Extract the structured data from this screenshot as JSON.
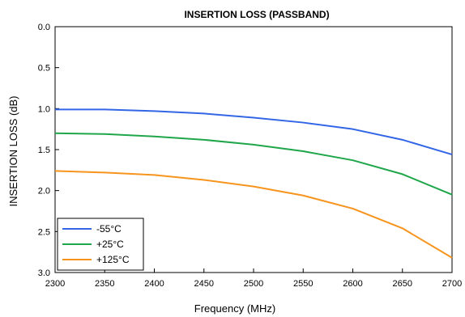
{
  "chart_data": {
    "type": "line",
    "title": "INSERTION LOSS (PASSBAND)",
    "xlabel": "Frequency (MHz)",
    "ylabel": "INSERTION LOSS (dB)",
    "xlim": [
      2300,
      2700
    ],
    "ylim": [
      0.0,
      3.0
    ],
    "y_inverted": true,
    "grid": false,
    "legend_position": "bottom-left",
    "x_ticks": [
      "2300",
      "2350",
      "2400",
      "2450",
      "2500",
      "2550",
      "2600",
      "2650",
      "2700"
    ],
    "y_ticks": [
      "0.0",
      "0.5",
      "1.0",
      "1.5",
      "2.0",
      "2.5",
      "3.0"
    ],
    "x": [
      2300,
      2350,
      2400,
      2450,
      2500,
      2550,
      2600,
      2650,
      2700
    ],
    "series": [
      {
        "name": "-55°C",
        "color": "#3366e6",
        "values": [
          1.01,
          1.01,
          1.03,
          1.06,
          1.11,
          1.17,
          1.25,
          1.38,
          1.56
        ]
      },
      {
        "name": "+25°C",
        "color": "#1fa64a",
        "values": [
          1.3,
          1.31,
          1.34,
          1.38,
          1.44,
          1.52,
          1.63,
          1.8,
          2.05
        ]
      },
      {
        "name": "+125°C",
        "color": "#f7941d",
        "values": [
          1.76,
          1.78,
          1.81,
          1.87,
          1.95,
          2.06,
          2.22,
          2.46,
          2.82
        ]
      }
    ]
  }
}
